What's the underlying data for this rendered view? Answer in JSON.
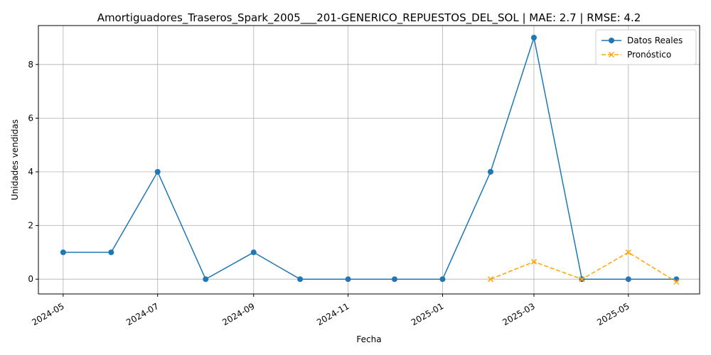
{
  "chart_data": {
    "type": "line",
    "title": "Amortiguadores_Traseros_Spark_2005___201-GENERICO_REPUESTOS_DEL_SOL | MAE: 2.7 | RMSE: 4.2",
    "xlabel": "Fecha",
    "ylabel": "Unidades vendidas",
    "x_ticks": [
      "2024-05",
      "2024-07",
      "2024-09",
      "2024-11",
      "2025-01",
      "2025-03",
      "2025-05"
    ],
    "y_ticks": [
      0,
      2,
      4,
      6,
      8
    ],
    "ylim": [
      -0.55,
      9.45
    ],
    "xlim": [
      "2024-04-15",
      "2025-06-16"
    ],
    "grid": true,
    "legend_position": "top-right",
    "series": [
      {
        "name": "Datos Reales",
        "color": "#1f77b4",
        "marker": "circle",
        "line_style": "solid",
        "x": [
          "2024-05-01",
          "2024-06-01",
          "2024-07-01",
          "2024-08-01",
          "2024-09-01",
          "2024-10-01",
          "2024-11-01",
          "2024-12-01",
          "2025-01-01",
          "2025-02-01",
          "2025-03-01",
          "2025-04-01",
          "2025-05-01",
          "2025-06-01"
        ],
        "values": [
          1,
          1,
          4,
          0,
          1,
          0,
          0,
          0,
          0,
          4,
          9,
          0,
          0,
          0
        ]
      },
      {
        "name": "Pronóstico",
        "color": "#ffa500",
        "marker": "x",
        "line_style": "dashed",
        "x": [
          "2025-02-01",
          "2025-03-01",
          "2025-04-01",
          "2025-05-01",
          "2025-06-01"
        ],
        "values": [
          0,
          0.65,
          0,
          1,
          -0.1
        ]
      }
    ]
  }
}
